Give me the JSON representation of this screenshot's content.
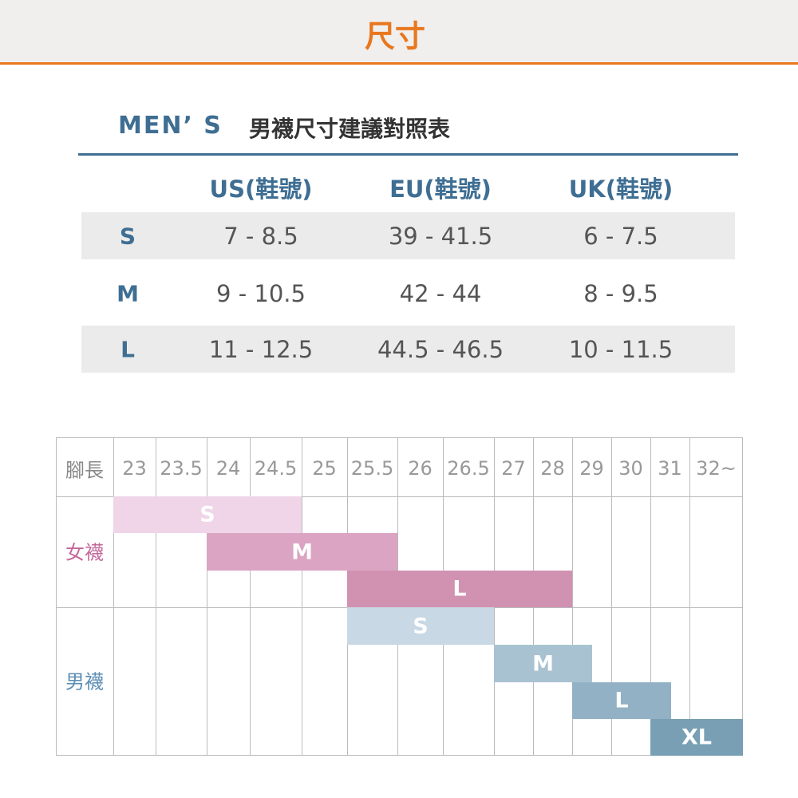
{
  "header": {
    "title": "尺寸"
  },
  "men_table": {
    "brand": "MEN’ S",
    "title": "男襪尺寸建議對照表",
    "columns": [
      "US(鞋號)",
      "EU(鞋號)",
      "UK(鞋號)"
    ],
    "rows": [
      [
        "S",
        "7 - 8.5",
        "39 - 41.5",
        "6 - 7.5"
      ],
      [
        "M",
        "9 - 10.5",
        "42 - 44",
        "8 - 9.5"
      ],
      [
        "L",
        "11 - 12.5",
        "44.5 - 46.5",
        "10 - 11.5"
      ]
    ]
  },
  "foot_chart": {
    "header": "腳長",
    "sizes": [
      "23",
      "23.5",
      "24",
      "24.5",
      "25",
      "25.5",
      "26",
      "26.5",
      "27",
      "28",
      "29",
      "30",
      "31",
      "32~"
    ],
    "groups": [
      {
        "label": "女襪",
        "bars": [
          "S",
          "M",
          "L"
        ]
      },
      {
        "label": "男襪",
        "bars": [
          "S",
          "M",
          "L",
          "XL"
        ]
      }
    ]
  }
}
